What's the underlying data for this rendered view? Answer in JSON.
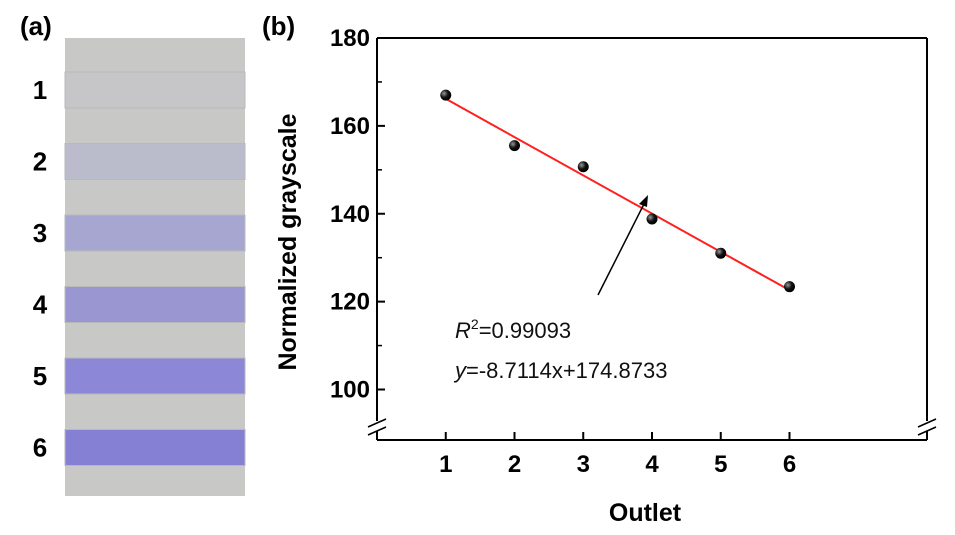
{
  "panels": {
    "a": {
      "label": "(a)"
    },
    "b": {
      "label": "(b)"
    }
  },
  "strip": {
    "background_color": "#c8c8c6",
    "outlets": [
      {
        "label": "1",
        "color": "#c6c6c8"
      },
      {
        "label": "2",
        "color": "#bbbccb"
      },
      {
        "label": "3",
        "color": "#a7a6d0"
      },
      {
        "label": "4",
        "color": "#9996d2"
      },
      {
        "label": "5",
        "color": "#8c87d6"
      },
      {
        "label": "6",
        "color": "#8580d4"
      }
    ]
  },
  "chart_data": {
    "type": "scatter",
    "xlabel": "Outlet",
    "ylabel": "Normalized grayscale",
    "xlim": [
      0,
      8
    ],
    "ylim": [
      90,
      180
    ],
    "axis_break": true,
    "x_ticks": [
      1,
      2,
      3,
      4,
      5,
      6
    ],
    "y_ticks": [
      100,
      120,
      140,
      160,
      180
    ],
    "grid": false,
    "series": [
      {
        "x": [
          1,
          2,
          3,
          4,
          5,
          6
        ],
        "y": [
          167,
          155.5,
          150.7,
          138.8,
          131,
          123.4
        ],
        "marker_color": "#111111"
      }
    ],
    "fit": {
      "slope": -8.7114,
      "intercept": 174.8733,
      "x_range": [
        1,
        6
      ],
      "color": "#ff2020"
    },
    "annotations": {
      "r2_symbol": "R",
      "r2_exponent": "2",
      "r2_value": "=0.99093",
      "eq_symbol": "y",
      "eq_text": "=-8.7114x+174.8733"
    }
  }
}
